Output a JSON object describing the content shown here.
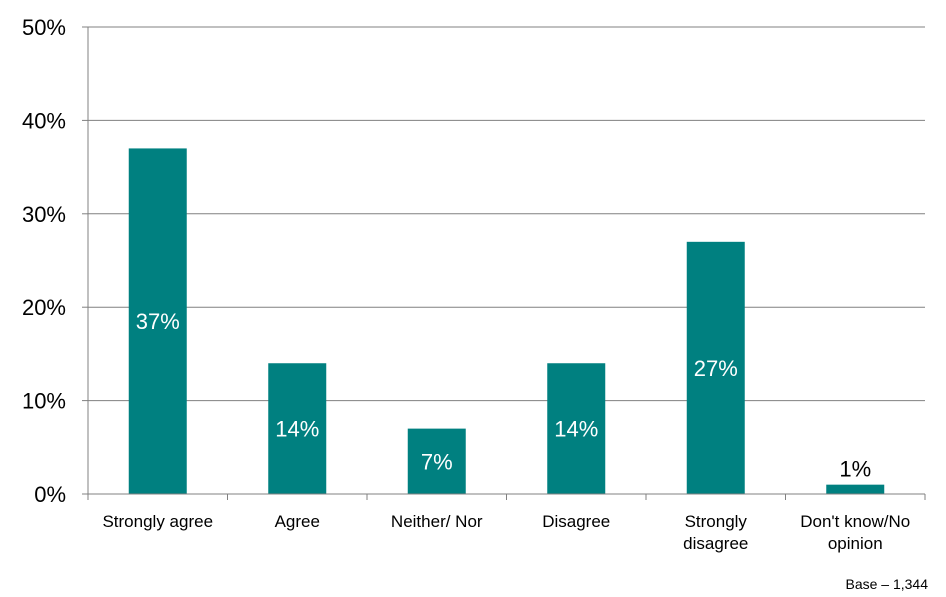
{
  "chart_data": {
    "type": "bar",
    "title": "",
    "xlabel": "",
    "ylabel": "",
    "ylim": [
      0,
      50
    ],
    "ytick_values": [
      0,
      10,
      20,
      30,
      40,
      50
    ],
    "ytick_labels": [
      "0%",
      "10%",
      "20%",
      "30%",
      "40%",
      "50%"
    ],
    "categories": [
      "Strongly agree",
      "Agree",
      "Neither/ Nor",
      "Disagree",
      "Strongly disagree",
      "Don't know/No opinion"
    ],
    "category_lines": [
      [
        "Strongly agree"
      ],
      [
        "Agree"
      ],
      [
        "Neither/ Nor"
      ],
      [
        "Disagree"
      ],
      [
        "Strongly",
        "disagree"
      ],
      [
        "Don't know/No",
        "opinion"
      ]
    ],
    "values": [
      37,
      14,
      7,
      14,
      27,
      1
    ],
    "data_labels": [
      "37%",
      "14%",
      "7%",
      "14%",
      "27%",
      "1%"
    ],
    "bar_color": "#008080",
    "grid": true,
    "legend": "none"
  },
  "footnote": "Base – 1,344"
}
